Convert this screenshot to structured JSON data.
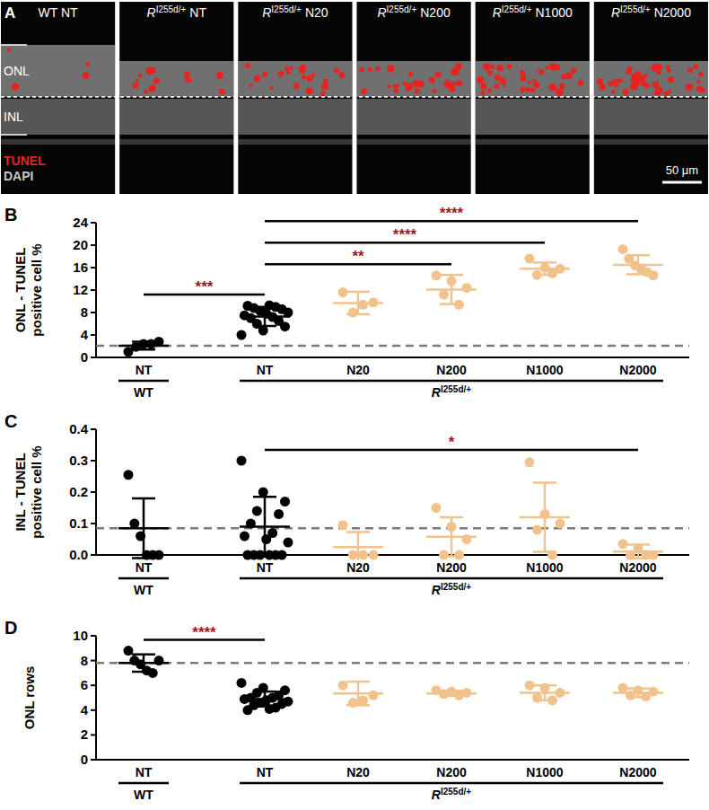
{
  "image_panel": {
    "letter": "A",
    "panels": [
      {
        "text": "WT NT"
      },
      {
        "text": "R",
        "sup": "I255d/+",
        "suffix": "NT"
      },
      {
        "text": "R",
        "sup": "I255d/+",
        "suffix": "N20"
      },
      {
        "text": "R",
        "sup": "I255d/+",
        "suffix": "N200"
      },
      {
        "text": "R",
        "sup": "I255d/+",
        "suffix": "N1000"
      },
      {
        "text": "R",
        "sup": "I255d/+",
        "suffix": "N2000"
      }
    ],
    "layers": [
      "ONL",
      "INL"
    ],
    "stains": [
      {
        "text": "TUNEL",
        "color": "#e8231f"
      },
      {
        "text": "DAPI",
        "color": "#c8c8c8"
      }
    ],
    "scale_bar": "50 μm"
  },
  "chart_data": [
    {
      "type": "scatter",
      "panel": "B",
      "y_label": "ONL - TUNEL positive cell %",
      "categories": [
        "NT",
        "NT",
        "N20",
        "N200",
        "N1000",
        "N2000"
      ],
      "colors": [
        "#000000",
        "#000000",
        "#f2c28c",
        "#f2c28c",
        "#f2c28c",
        "#f2c28c"
      ],
      "points": [
        [
          1.0,
          2.4,
          2.8,
          1.9,
          2.4
        ],
        [
          4.0,
          4.8,
          5.5,
          6.0,
          6.5,
          7.0,
          7.2,
          7.5,
          7.8,
          8.0,
          8.3,
          8.6,
          8.8,
          9.0,
          9.2,
          9.3
        ],
        [
          11.6,
          9.8,
          9.4,
          8.0
        ],
        [
          14.6,
          13.6,
          12.4,
          11.2,
          9.4
        ],
        [
          17.6,
          16.0,
          15.8,
          14.7,
          15.0
        ],
        [
          19.3,
          17.6,
          16.4,
          15.8,
          15.2,
          14.6
        ]
      ],
      "mean": [
        2.1,
        7.3,
        9.7,
        12.1,
        15.8,
        16.5
      ],
      "sd": [
        0.7,
        1.7,
        2.0,
        2.6,
        1.1,
        1.7
      ],
      "reference_line": 2.1,
      "ylim": [
        0,
        24
      ],
      "yticks": [
        0,
        4,
        8,
        12,
        16,
        20,
        24
      ],
      "group_labels": [
        {
          "text": "WT",
          "from": 0,
          "to": 0
        },
        {
          "text": "R",
          "sup": "I255d/+",
          "from": 1,
          "to": 5
        }
      ],
      "significance": [
        {
          "from": 0,
          "to": 1,
          "label": "***",
          "color": "#a3171c"
        },
        {
          "from": 1,
          "to": 3,
          "label": "**",
          "color": "#a3171c"
        },
        {
          "from": 1,
          "to": 4,
          "label": "****",
          "color": "#a3171c"
        },
        {
          "from": 1,
          "to": 5,
          "label": "****",
          "color": "#a3171c"
        }
      ]
    },
    {
      "type": "scatter",
      "panel": "C",
      "y_label": "INL - TUNEL positive cell %",
      "categories": [
        "NT",
        "NT",
        "N20",
        "N200",
        "N1000",
        "N2000"
      ],
      "colors": [
        "#000000",
        "#000000",
        "#f2c28c",
        "#f2c28c",
        "#f2c28c",
        "#f2c28c"
      ],
      "points": [
        [
          0.255,
          0.1,
          0.06,
          0,
          0,
          0
        ],
        [
          0.3,
          0.2,
          0.17,
          0.14,
          0.13,
          0.1,
          0.07,
          0.06,
          0.05,
          0.04,
          0,
          0,
          0,
          0,
          0,
          0
        ],
        [
          0.095,
          0,
          0,
          0
        ],
        [
          0.15,
          0.09,
          0.05,
          0,
          0
        ],
        [
          0.295,
          0.13,
          0.1,
          0.08,
          0
        ],
        [
          0.035,
          0.02,
          0,
          0,
          0
        ]
      ],
      "mean": [
        0.085,
        0.09,
        0.025,
        0.058,
        0.12,
        0.011
      ],
      "sd": [
        0.095,
        0.095,
        0.048,
        0.062,
        0.11,
        0.022
      ],
      "reference_line": 0.085,
      "ylim": [
        0,
        0.4
      ],
      "yticks": [
        {
          "value": 0,
          "label": "0.0"
        },
        0.1,
        0.2,
        0.3,
        0.4
      ],
      "group_labels": [
        {
          "text": "WT",
          "from": 0,
          "to": 0
        },
        {
          "text": "R",
          "sup": "I255d/+",
          "from": 1,
          "to": 5
        }
      ],
      "significance": [
        {
          "from": 1,
          "to": 5,
          "label": "*",
          "color": "#a3171c"
        }
      ]
    },
    {
      "type": "scatter",
      "panel": "D",
      "y_label": "ONL rows",
      "categories": [
        "NT",
        "NT",
        "N20",
        "N200",
        "N1000",
        "N2000"
      ],
      "colors": [
        "#000000",
        "#000000",
        "#f2c28c",
        "#f2c28c",
        "#f2c28c",
        "#f2c28c"
      ],
      "points": [
        [
          8.8,
          8.0,
          7.7,
          7.2,
          7.0,
          8.0
        ],
        [
          6.2,
          5.8,
          5.6,
          5.4,
          5.2,
          5.0,
          5.0,
          4.9,
          4.8,
          4.7,
          4.6,
          4.5,
          4.4,
          4.2,
          4.0,
          4.1
        ],
        [
          6.0,
          5.2,
          4.8,
          4.6
        ],
        [
          5.6,
          5.5,
          5.4,
          5.3,
          5.2
        ],
        [
          6.0,
          5.8,
          5.4,
          5.0,
          4.8
        ],
        [
          5.8,
          5.6,
          5.5,
          5.2,
          5.1
        ]
      ],
      "mean": [
        7.8,
        4.9,
        5.35,
        5.35,
        5.4,
        5.4
      ],
      "sd": [
        0.7,
        0.6,
        0.95,
        0.2,
        0.6,
        0.35
      ],
      "reference_line": 7.8,
      "ylim": [
        0,
        10
      ],
      "yticks": [
        0,
        2,
        4,
        6,
        8,
        10
      ],
      "group_labels": [
        {
          "text": "WT",
          "from": 0,
          "to": 0
        },
        {
          "text": "R",
          "sup": "I255d/+",
          "from": 1,
          "to": 5
        }
      ],
      "significance": [
        {
          "from": 0,
          "to": 1,
          "label": "****",
          "color": "#a3171c"
        }
      ]
    }
  ]
}
